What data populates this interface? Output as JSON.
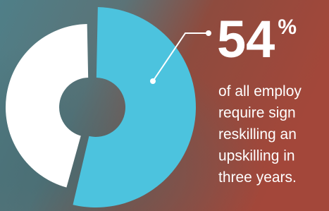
{
  "chart_data": {
    "type": "pie",
    "donut": true,
    "values": [
      54,
      46
    ],
    "value_labels": [
      "54%",
      null
    ],
    "colors": [
      "#4cc3de",
      "#ffffff"
    ],
    "body_lines": [
      "of all employ",
      "require sign",
      "reskilling an",
      "upskilling in",
      "three years."
    ]
  }
}
